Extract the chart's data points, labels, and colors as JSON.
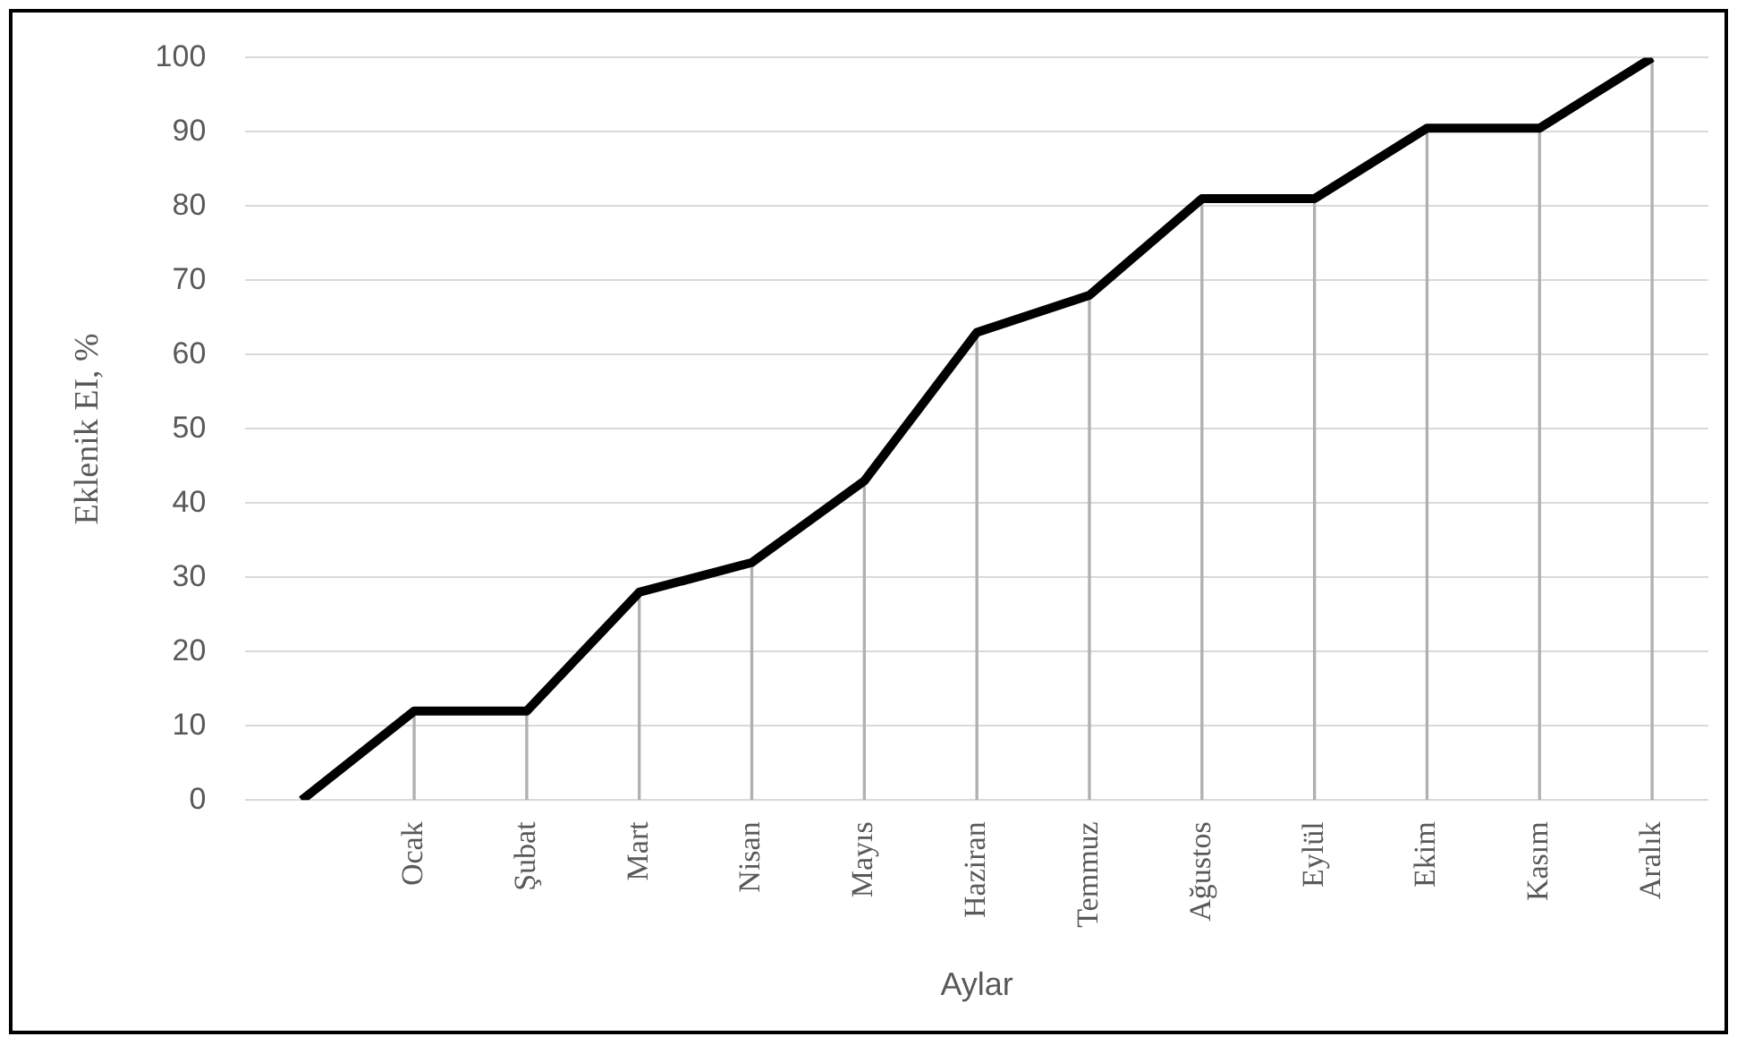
{
  "chart_data": {
    "type": "line",
    "xlabel": "Aylar",
    "ylabel": "Eklenik EI, %",
    "categories": [
      null,
      "Ocak",
      "Şubat",
      "Mart",
      "Nisan",
      "Mayıs",
      "Haziran",
      "Temmuz",
      "Ağustos",
      "Eylül",
      "Ekim",
      "Kasım",
      "Aralık"
    ],
    "series": [
      {
        "color": "#000000",
        "values": [
          0,
          12,
          12,
          28,
          32,
          43,
          63,
          68,
          81,
          81,
          90.5,
          90.5,
          100
        ]
      },
      {
        "type": "bar",
        "color": "#b0b0b0",
        "values": [
          0,
          12,
          12,
          28,
          32,
          43,
          63,
          68,
          81,
          81,
          90.5,
          90.5,
          100
        ]
      }
    ],
    "ylim": [
      0,
      100
    ],
    "yticks": [
      0,
      10,
      20,
      30,
      40,
      50,
      60,
      70,
      80,
      90,
      100
    ],
    "grid": "y",
    "legend": false,
    "marker": "none",
    "line_style": "solid"
  }
}
